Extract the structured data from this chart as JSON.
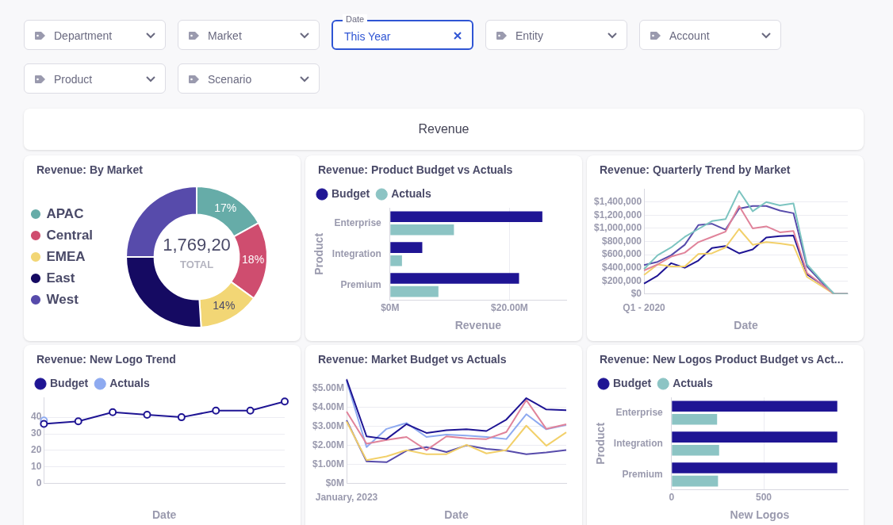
{
  "chart_data": [
    {
      "type": "other",
      "title": "Revenue",
      "annotations": [
        "Department",
        "Market",
        "Date",
        "This Year",
        "Entity",
        "Account",
        "Product",
        "Scenario"
      ]
    },
    {
      "type": "donut",
      "title": "Revenue: By Market",
      "categories": [
        "APAC",
        "Central",
        "EMEA",
        "East",
        "West"
      ],
      "values": [
        17,
        18,
        14,
        26,
        25
      ],
      "colors": [
        "#66aca8",
        "#cf4d6f",
        "#f2d675",
        "#150a62",
        "#574bab"
      ],
      "value_labels": [
        "17%",
        "18%",
        "14%",
        null,
        null
      ],
      "annotations": [
        "1,769,20",
        "TOTAL"
      ],
      "legend": "left"
    },
    {
      "type": "bar",
      "orientation": "horizontal",
      "title": "Revenue: Product Budget vs Actuals",
      "categories": [
        "Enterprise",
        "Integration",
        "Premium"
      ],
      "series": [
        {
          "name": "Budget",
          "color": "#1f1594",
          "values": [
            25.5,
            5.4,
            21.6
          ]
        },
        {
          "name": "Actuals",
          "color": "#8cc4c4",
          "values": [
            10.7,
            2.0,
            8.1
          ]
        }
      ],
      "xlim": [
        0,
        29.5
      ],
      "xticks": [
        {
          "value": 0,
          "label": "$0M"
        },
        {
          "value": 20,
          "label": "$20.00M"
        }
      ],
      "xlabel": "Revenue",
      "ylabel": "Product",
      "grid": "x",
      "legend": "top left"
    },
    {
      "type": "line",
      "title": "Revenue: Quarterly Trend by Market",
      "categories": [
        "Q1 - 2020",
        null,
        null,
        null,
        null,
        null,
        null,
        null,
        null,
        null,
        null,
        null,
        null,
        null,
        null,
        null
      ],
      "series": [
        {
          "color": "#7cc4c0",
          "values": [
            380000,
            590000,
            710000,
            870000,
            990000,
            1110000,
            1140000,
            1570000,
            1260000,
            1400000,
            1350000,
            1380000,
            450000,
            220000,
            0,
            0
          ]
        },
        {
          "color": "#e0839a",
          "values": [
            360000,
            450000,
            570000,
            630000,
            790000,
            870000,
            950000,
            1340000,
            1000000,
            1030000,
            940000,
            960000,
            320000,
            160000,
            0,
            0
          ]
        },
        {
          "color": "#f2d06a",
          "values": [
            290000,
            450000,
            420000,
            420000,
            610000,
            620000,
            710000,
            990000,
            750000,
            790000,
            770000,
            740000,
            260000,
            130000,
            0,
            0
          ]
        },
        {
          "color": "#1f1594",
          "values": [
            160000,
            280000,
            470000,
            400000,
            510000,
            700000,
            730000,
            620000,
            680000,
            860000,
            880000,
            890000,
            300000,
            160000,
            0,
            0
          ]
        },
        {
          "color": "#574bab",
          "values": [
            440000,
            490000,
            590000,
            750000,
            1050000,
            1070000,
            980000,
            1300000,
            1340000,
            1340000,
            1270000,
            1230000,
            420000,
            200000,
            0,
            0
          ]
        }
      ],
      "ylim": [
        0,
        1600000
      ],
      "yticks": [
        {
          "value": 0,
          "label": "$0"
        },
        {
          "value": 200000,
          "label": "$200,000"
        },
        {
          "value": 400000,
          "label": "$400,000"
        },
        {
          "value": 600000,
          "label": "$600,000"
        },
        {
          "value": 800000,
          "label": "$800,000"
        },
        {
          "value": 1000000,
          "label": "$1,000,000"
        },
        {
          "value": 1200000,
          "label": "$1,200,000"
        },
        {
          "value": 1400000,
          "label": "$1,400,000"
        }
      ],
      "xlabel": "Date",
      "grid": "y"
    },
    {
      "type": "line",
      "title": "Revenue: New Logo Trend",
      "categories": [
        null,
        null,
        null,
        null,
        null,
        null,
        null,
        null
      ],
      "series": [
        {
          "name": "Budget",
          "color": "#1f1594",
          "values": [
            36,
            37.5,
            43,
            41.5,
            40,
            44,
            44,
            49.5
          ]
        },
        {
          "name": "Actuals",
          "color": "#8eaaf0",
          "values": [
            38,
            null,
            null,
            null,
            null,
            null,
            null,
            null
          ]
        }
      ],
      "ylim": [
        0,
        52
      ],
      "yticks": [
        0,
        10,
        20,
        30,
        40
      ],
      "xlabel": "Date",
      "grid": "y",
      "legend": "top left",
      "marker": "circle"
    },
    {
      "type": "line",
      "title": "Revenue: Market Budget vs Actuals",
      "categories": [
        "January, 2023",
        null,
        null,
        null,
        null,
        null,
        null,
        null,
        null,
        null,
        null,
        null
      ],
      "series": [
        {
          "color": "#1f1594",
          "values": [
            5.45,
            2.47,
            2.33,
            3.11,
            2.65,
            2.79,
            2.84,
            2.75,
            3.35,
            4.47,
            3.88,
            3.84
          ]
        },
        {
          "color": "#e0839a",
          "values": [
            3.77,
            2.09,
            2.28,
            2.44,
            1.75,
            2.47,
            2.37,
            2.33,
            2.7,
            4.37,
            2.86,
            3.1
          ]
        },
        {
          "color": "#8eaaf0",
          "values": [
            5.38,
            1.91,
            2.86,
            3.17,
            2.44,
            2.56,
            2.51,
            2.44,
            2.33,
            3.63,
            2.84,
            3.07
          ]
        },
        {
          "color": "#f2d06a",
          "values": [
            3.25,
            1.23,
            1.42,
            1.75,
            1.54,
            1.54,
            2.03,
            1.58,
            1.75,
            3.03,
            1.98,
            2.68
          ]
        },
        {
          "color": "#574bab",
          "values": [
            3.31,
            1.16,
            1.12,
            1.72,
            1.91,
            1.65,
            2.0,
            1.82,
            1.72,
            1.54,
            1.63,
            1.75
          ]
        }
      ],
      "ylim": [
        0,
        5.5
      ],
      "yticks": [
        {
          "value": 0,
          "label": "$0M"
        },
        {
          "value": 1,
          "label": "$1.00M"
        },
        {
          "value": 2,
          "label": "$2.00M"
        },
        {
          "value": 3,
          "label": "$3.00M"
        },
        {
          "value": 4,
          "label": "$4.00M"
        },
        {
          "value": 5,
          "label": "$5.00M"
        }
      ],
      "xlabel": "Date",
      "grid": "y"
    },
    {
      "type": "bar",
      "orientation": "horizontal",
      "title": "Revenue: New Logos Product Budget vs Act...",
      "categories": [
        "Enterprise",
        "Integration",
        "Premium"
      ],
      "series": [
        {
          "name": "Budget",
          "color": "#1f1594",
          "values": [
            899,
            899,
            899
          ]
        },
        {
          "name": "Actuals",
          "color": "#8cc4c4",
          "values": [
            247,
            258,
            252
          ]
        }
      ],
      "xlim": [
        0,
        956
      ],
      "xticks": [
        0,
        500
      ],
      "xlabel": "New Logos",
      "ylabel": "Product",
      "grid": "x",
      "legend": "top left"
    }
  ]
}
